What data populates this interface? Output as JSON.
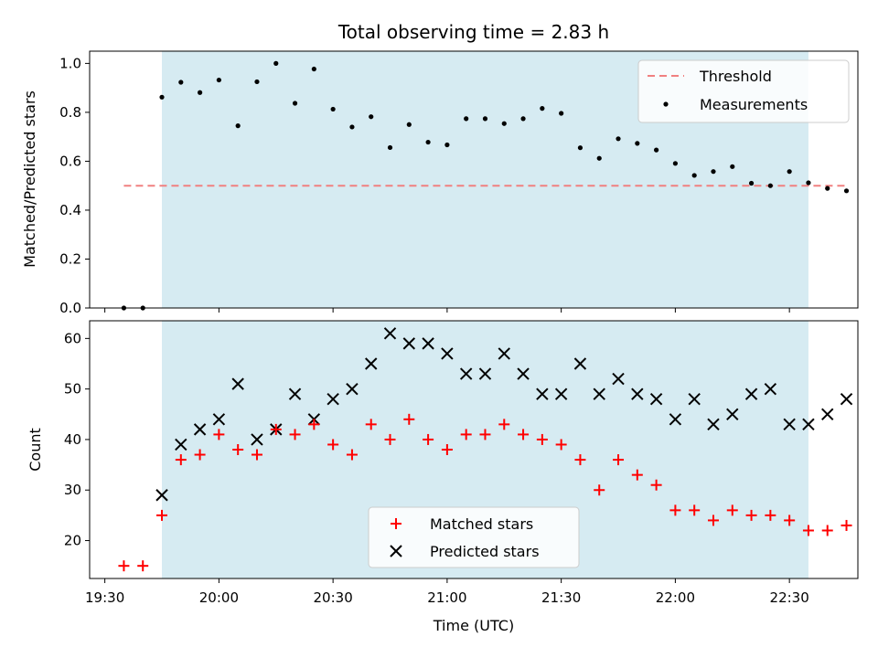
{
  "chart_data": [
    {
      "type": "scatter",
      "title": "Total observing time = 2.83 h",
      "ylabel": "Matched/Predicted stars",
      "xlabel": "",
      "xlim": [
        "19:26",
        "22:48"
      ],
      "ylim": [
        0,
        1.05
      ],
      "yticks": [
        "0.0",
        "0.2",
        "0.4",
        "0.6",
        "0.8",
        "1.0"
      ],
      "shaded_interval": [
        "19:45",
        "22:35"
      ],
      "threshold": {
        "name": "Threshold",
        "value": 0.5,
        "x_range": [
          "19:35",
          "22:45"
        ],
        "color": "#f08080"
      },
      "series": [
        {
          "name": "Measurements",
          "color": "#000000",
          "points": [
            [
              "19:35",
              0.0
            ],
            [
              "19:40",
              0.0
            ],
            [
              "19:45",
              0.862
            ],
            [
              "19:50",
              0.923
            ],
            [
              "19:55",
              0.881
            ],
            [
              "20:00",
              0.932
            ],
            [
              "20:05",
              0.745
            ],
            [
              "20:10",
              0.925
            ],
            [
              "20:15",
              1.0
            ],
            [
              "20:20",
              0.837
            ],
            [
              "20:25",
              0.977
            ],
            [
              "20:30",
              0.813
            ],
            [
              "20:35",
              0.74
            ],
            [
              "20:40",
              0.782
            ],
            [
              "20:45",
              0.656
            ],
            [
              "20:50",
              0.75
            ],
            [
              "20:55",
              0.678
            ],
            [
              "21:00",
              0.667
            ],
            [
              "21:05",
              0.774
            ],
            [
              "21:10",
              0.774
            ],
            [
              "21:15",
              0.754
            ],
            [
              "21:20",
              0.774
            ],
            [
              "21:25",
              0.816
            ],
            [
              "21:30",
              0.796
            ],
            [
              "21:35",
              0.655
            ],
            [
              "21:40",
              0.612
            ],
            [
              "21:45",
              0.692
            ],
            [
              "21:50",
              0.673
            ],
            [
              "21:55",
              0.646
            ],
            [
              "22:00",
              0.591
            ],
            [
              "22:05",
              0.542
            ],
            [
              "22:10",
              0.558
            ],
            [
              "22:15",
              0.578
            ],
            [
              "22:20",
              0.51
            ],
            [
              "22:25",
              0.5
            ],
            [
              "22:30",
              0.558
            ],
            [
              "22:35",
              0.512
            ],
            [
              "22:40",
              0.489
            ],
            [
              "22:45",
              0.479
            ]
          ]
        }
      ],
      "legend": "top-right"
    },
    {
      "type": "scatter",
      "title": "",
      "ylabel": "Count",
      "xlabel": "Time (UTC)",
      "xlim": [
        "19:26",
        "22:48"
      ],
      "ylim": [
        12.5,
        63.5
      ],
      "yticks": [
        "20",
        "30",
        "40",
        "50",
        "60"
      ],
      "xticks": [
        "19:30",
        "20:00",
        "20:30",
        "21:00",
        "21:30",
        "22:00",
        "22:30"
      ],
      "shaded_interval": [
        "19:45",
        "22:35"
      ],
      "x": [
        "19:35",
        "19:40",
        "19:45",
        "19:50",
        "19:55",
        "20:00",
        "20:05",
        "20:10",
        "20:15",
        "20:20",
        "20:25",
        "20:30",
        "20:35",
        "20:40",
        "20:45",
        "20:50",
        "20:55",
        "21:00",
        "21:05",
        "21:10",
        "21:15",
        "21:20",
        "21:25",
        "21:30",
        "21:35",
        "21:40",
        "21:45",
        "21:50",
        "21:55",
        "22:00",
        "22:05",
        "22:10",
        "22:15",
        "22:20",
        "22:25",
        "22:30",
        "22:35",
        "22:40",
        "22:45"
      ],
      "series": [
        {
          "name": "Matched stars",
          "marker": "plus",
          "color": "#ff0000",
          "values": [
            15,
            15,
            25,
            36,
            37,
            41,
            38,
            37,
            42,
            41,
            43,
            39,
            37,
            43,
            40,
            44,
            40,
            38,
            41,
            41,
            43,
            41,
            40,
            39,
            36,
            30,
            36,
            33,
            31,
            26,
            26,
            24,
            26,
            25,
            25,
            24,
            22,
            22,
            23
          ]
        },
        {
          "name": "Predicted stars",
          "marker": "x",
          "color": "#000000",
          "values": [
            null,
            null,
            29,
            39,
            42,
            44,
            51,
            40,
            42,
            49,
            44,
            48,
            50,
            55,
            61,
            59,
            59,
            57,
            53,
            53,
            57,
            53,
            49,
            49,
            55,
            49,
            52,
            49,
            48,
            44,
            48,
            43,
            45,
            49,
            50,
            43,
            43,
            45,
            48
          ]
        }
      ],
      "legend": "bottom-center"
    }
  ]
}
